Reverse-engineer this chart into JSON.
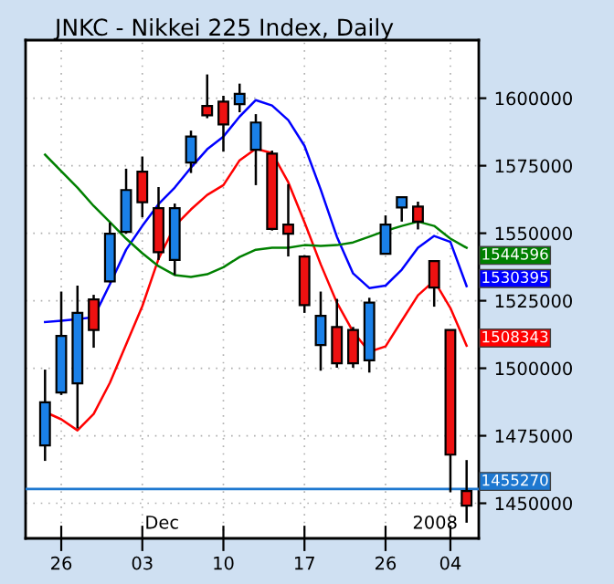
{
  "chart_data": {
    "type": "candlestick",
    "title": "JNKC - Nikkei 225 Index, Daily",
    "categories": [
      null,
      "26",
      null,
      null,
      null,
      null,
      "03",
      null,
      null,
      null,
      null,
      "10",
      null,
      null,
      null,
      null,
      "17",
      null,
      null,
      null,
      null,
      "26",
      null,
      null,
      null,
      "04",
      null
    ],
    "ohlc": [
      [
        1471400,
        1499500,
        1465700,
        1487400
      ],
      [
        1491000,
        1528400,
        1490100,
        1512000
      ],
      [
        1494400,
        1530600,
        1477700,
        1520500
      ],
      [
        1525500,
        1527200,
        1507600,
        1514200
      ],
      [
        1532200,
        1553900,
        1531800,
        1549800
      ],
      [
        1550500,
        1573900,
        1549800,
        1566000
      ],
      [
        1572800,
        1578400,
        1555900,
        1561500
      ],
      [
        1559300,
        1567100,
        1540100,
        1543000
      ],
      [
        1540100,
        1561000,
        1534500,
        1559300
      ],
      [
        1576200,
        1588000,
        1572300,
        1585800
      ],
      [
        1597100,
        1608800,
        1592600,
        1593700
      ],
      [
        1598700,
        1600900,
        1580200,
        1590300
      ],
      [
        1597800,
        1605400,
        1594800,
        1601600
      ],
      [
        1580900,
        1594100,
        1567800,
        1591000
      ],
      [
        1579500,
        1580600,
        1551000,
        1551600
      ],
      [
        1553200,
        1568200,
        1541400,
        1549800
      ],
      [
        1541400,
        1541900,
        1520500,
        1523400
      ],
      [
        1508600,
        1528400,
        1499100,
        1519400
      ],
      [
        1515300,
        1525700,
        1500200,
        1501800
      ],
      [
        1514200,
        1515300,
        1500200,
        1501800
      ],
      [
        1502900,
        1526100,
        1498400,
        1524300
      ],
      [
        1542400,
        1556600,
        1542400,
        1553200
      ],
      [
        1559500,
        1563300,
        1554300,
        1563300
      ],
      [
        1559900,
        1561700,
        1551400,
        1554300
      ],
      [
        1539700,
        1539700,
        1522800,
        1529900
      ],
      [
        1514200,
        1514200,
        1454100,
        1468000
      ],
      [
        1454500,
        1466000,
        1442800,
        1449100
      ]
    ],
    "colors": [
      "#1a80e8",
      "#1a80e8",
      "#1a80e8",
      "#ee1111",
      "#1a80e8",
      "#1a80e8",
      "#ee1111",
      "#ee1111",
      "#1a80e8",
      "#1a80e8",
      "#ee1111",
      "#ee1111",
      "#1a80e8",
      "#1a80e8",
      "#ee1111",
      "#ee1111",
      "#ee1111",
      "#1a80e8",
      "#ee1111",
      "#ee1111",
      "#1a80e8",
      "#1a80e8",
      "#1a80e8",
      "#ee1111",
      "#ee1111",
      "#ee1111",
      "#ee1111"
    ],
    "series": [
      {
        "type": "line",
        "color": "#0000ff",
        "values": [
          1517100,
          1517600,
          1518200,
          1518900,
          1531100,
          1543900,
          1552700,
          1560800,
          1566900,
          1574300,
          1581100,
          1585800,
          1593200,
          1599300,
          1597300,
          1591900,
          1582400,
          1566200,
          1548700,
          1535100,
          1529700,
          1530600,
          1536500,
          1544600,
          1549000,
          1546800,
          1530395
        ],
        "value_labels": [
          null,
          null,
          null,
          null,
          null,
          null,
          null,
          null,
          null,
          null,
          null,
          null,
          null,
          null,
          null,
          null,
          null,
          null,
          null,
          null,
          null,
          null,
          null,
          null,
          null,
          null,
          "1530395"
        ]
      },
      {
        "type": "line",
        "color": "#ff0000",
        "values": [
          1483800,
          1481100,
          1477000,
          1483100,
          1494600,
          1508800,
          1523000,
          1540500,
          1552700,
          1558800,
          1564200,
          1567800,
          1577000,
          1581300,
          1579700,
          1568900,
          1554100,
          1538500,
          1524300,
          1513500,
          1506100,
          1508100,
          1517600,
          1527000,
          1532400,
          1522300,
          1508343
        ],
        "value_labels": [
          null,
          null,
          null,
          null,
          null,
          null,
          null,
          null,
          null,
          null,
          null,
          null,
          null,
          null,
          null,
          null,
          null,
          null,
          null,
          null,
          null,
          null,
          null,
          null,
          null,
          null,
          "1508343"
        ]
      },
      {
        "type": "line",
        "color": "#008000",
        "values": [
          1579100,
          1573000,
          1566900,
          1560100,
          1554100,
          1548000,
          1542600,
          1537800,
          1534500,
          1533800,
          1534800,
          1537400,
          1541200,
          1543900,
          1544600,
          1544600,
          1545600,
          1545300,
          1545600,
          1546600,
          1548700,
          1550900,
          1552700,
          1554300,
          1552700,
          1548000,
          1544596
        ],
        "value_labels": [
          null,
          null,
          null,
          null,
          null,
          null,
          null,
          null,
          null,
          null,
          null,
          null,
          null,
          null,
          null,
          null,
          null,
          null,
          null,
          null,
          null,
          null,
          null,
          null,
          null,
          null,
          "1544596"
        ]
      }
    ],
    "ref_lines": [
      {
        "axis": "y",
        "value": 1455270,
        "label": "1455270",
        "color": "#1e78d0"
      }
    ],
    "annotations": [
      "Dec",
      "2008"
    ],
    "ylim": [
      1437000,
      1621500
    ],
    "yticks": [
      1450000,
      1475000,
      1500000,
      1525000,
      1550000,
      1575000,
      1600000
    ],
    "grid": true,
    "line_style": "solid",
    "marker": "none"
  }
}
